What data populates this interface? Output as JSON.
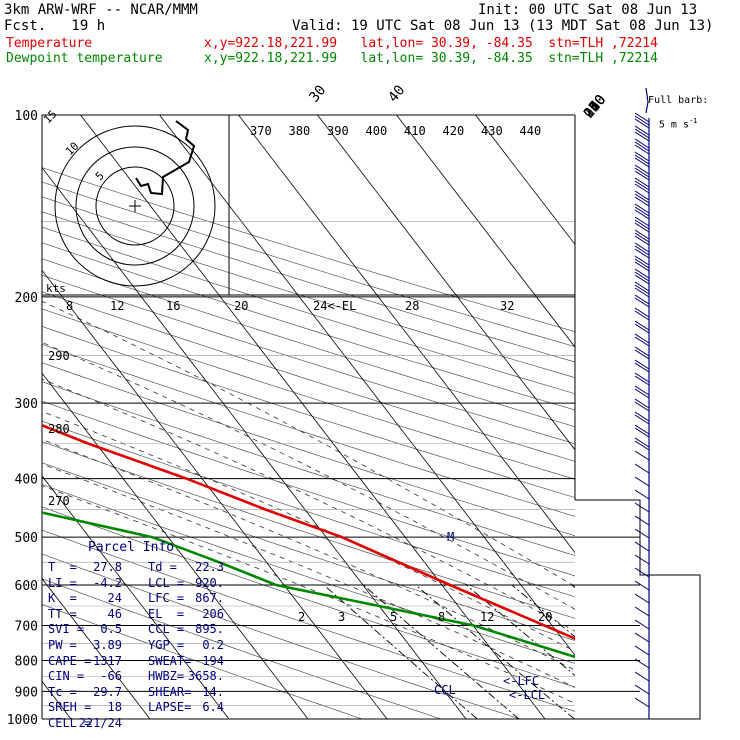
{
  "header": {
    "model": "3km ARW-WRF -- NCAR/MMM",
    "init": "Init: 00 UTC Sat 08 Jun 13",
    "fcst": "Fcst.   19 h",
    "valid": "Valid: 19 UTC Sat 08 Jun 13 (13 MDT Sat 08 Jun 13)"
  },
  "legend": [
    {
      "label": "Temperature",
      "info": "x,y=922.18,221.99   lat,lon= 30.39, -84.35  stn=TLH ,72214",
      "color": "#e00000"
    },
    {
      "label": "Dewpoint temperature",
      "info": "x,y=922.18,221.99   lat,lon= 30.39, -84.35  stn=TLH ,72214",
      "color": "#008800"
    }
  ],
  "barb_label": {
    "line1": "Full barb:",
    "line2": "5 m s",
    "sup": "-1"
  },
  "parcel": {
    "title": "Parcel Info",
    "rows": [
      [
        "T  =",
        "27.8",
        "Td =",
        "22.3"
      ],
      [
        "LI =",
        "-4.2",
        "LCL =",
        "920."
      ],
      [
        "K  =",
        "24",
        "LFC =",
        "867."
      ],
      [
        "TT =",
        "46",
        "EL  =",
        "206"
      ],
      [
        "SVI =",
        "0.5",
        "CCL =",
        "895."
      ],
      [
        "PW =",
        "3.89",
        "YGP =",
        "0.2"
      ],
      [
        "CAPE =",
        "1317",
        "SWEAT=",
        "194"
      ],
      [
        "CIN =",
        "-66",
        "HWBZ=",
        "3658."
      ],
      [
        "Tc =",
        "29.7",
        "SHEAR=",
        "14."
      ],
      [
        "SREH =",
        "18",
        "LAPSE=",
        "6.4"
      ],
      [
        "CELL =",
        "221/24",
        "",
        ""
      ]
    ]
  },
  "chart_data": {
    "type": "line",
    "chart": "skew-T log-p sounding",
    "pressure_levels": [
      100,
      200,
      300,
      400,
      500,
      600,
      700,
      800,
      900,
      1000
    ],
    "temp_ticks": [
      -80,
      -70,
      -60,
      -50,
      -40,
      -30,
      -20,
      -10,
      0,
      10,
      20,
      30,
      40
    ],
    "theta_labels": [
      "370",
      "380",
      "390",
      "400",
      "410",
      "420",
      "430",
      "440"
    ],
    "hodo_labels": [
      "8",
      "12",
      "16",
      "20",
      "24<-EL",
      "28",
      "32"
    ],
    "hodo_rings": [
      "15",
      "10",
      "5"
    ],
    "hodo_units": "kts",
    "theta_side_labels": [
      "290",
      "280",
      "270"
    ],
    "mixing_ratio_labels": [
      "2",
      "3",
      "5",
      "8",
      "12",
      "20"
    ],
    "markers": [
      "M",
      "<-LFC",
      "<-LCL",
      "CCL"
    ],
    "series": [
      {
        "name": "Temperature",
        "color": "#e00000",
        "points": [
          [
            100,
            -72
          ],
          [
            125,
            -71
          ],
          [
            150,
            -71
          ],
          [
            200,
            -63
          ],
          [
            250,
            -52
          ],
          [
            300,
            -40
          ],
          [
            350,
            -31
          ],
          [
            400,
            -22
          ],
          [
            450,
            -15
          ],
          [
            500,
            -8
          ],
          [
            600,
            1
          ],
          [
            700,
            9
          ],
          [
            800,
            16
          ],
          [
            850,
            19
          ],
          [
            900,
            21
          ],
          [
            925,
            23
          ],
          [
            950,
            26
          ],
          [
            1000,
            27.8
          ]
        ]
      },
      {
        "name": "Dewpoint temperature",
        "color": "#008800",
        "points": [
          [
            100,
            -82
          ],
          [
            125,
            -84
          ],
          [
            150,
            -86
          ],
          [
            175,
            -85
          ],
          [
            200,
            -78
          ],
          [
            250,
            -60
          ],
          [
            300,
            -40
          ],
          [
            350,
            -50
          ],
          [
            400,
            -54
          ],
          [
            450,
            -45
          ],
          [
            500,
            -32
          ],
          [
            550,
            -26
          ],
          [
            600,
            -21
          ],
          [
            650,
            -10
          ],
          [
            700,
            0
          ],
          [
            800,
            11
          ],
          [
            850,
            15
          ],
          [
            900,
            19
          ],
          [
            950,
            21
          ],
          [
            1000,
            22.3
          ]
        ]
      }
    ],
    "hodograph": [
      [
        0,
        0
      ],
      [
        1,
        -2
      ],
      [
        3,
        -2
      ],
      [
        6,
        -3
      ],
      [
        8,
        -6
      ],
      [
        6,
        -9
      ],
      [
        10,
        -14
      ],
      [
        15,
        -20
      ],
      [
        18,
        -24
      ]
    ]
  }
}
